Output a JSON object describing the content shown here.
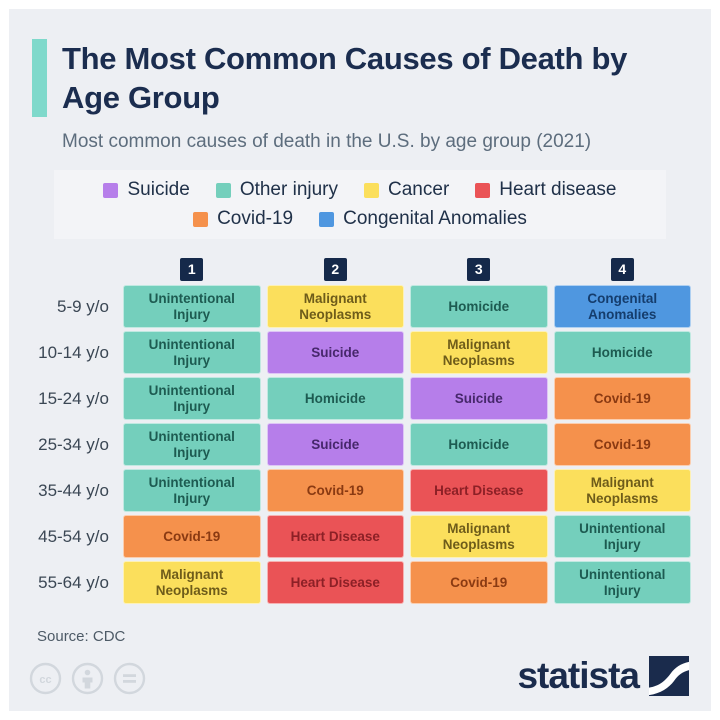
{
  "header": {
    "title": "The Most Common Causes of Death by Age Group",
    "subtitle": "Most common causes of death in the U.S. by age group (2021)"
  },
  "legend": {
    "items": [
      "suicide",
      "other_injury",
      "cancer",
      "heart_disease",
      "covid19",
      "congenital_anomalies"
    ]
  },
  "chart_data": {
    "type": "table",
    "title": "The Most Common Causes of Death by Age Group",
    "subtitle": "Most common causes of death in the U.S. by age group (2021)",
    "source": "Source: CDC",
    "columns": [
      "1",
      "2",
      "3",
      "4"
    ],
    "categories": {
      "suicide": {
        "label": "Suicide",
        "bg": "#b67eea",
        "text_color": "#46276b"
      },
      "other_injury": {
        "label": "Other injury",
        "bg": "#74cfbc",
        "text_color": "#1d5b51"
      },
      "cancer": {
        "label": "Cancer",
        "bg": "#fbdf5c",
        "text_color": "#6e5c1a"
      },
      "heart_disease": {
        "label": "Heart disease",
        "bg": "#ea5356",
        "text_color": "#8c2026"
      },
      "covid19": {
        "label": "Covid-19",
        "bg": "#f5914c",
        "text_color": "#8a3a12"
      },
      "congenital_anomalies": {
        "label": "Congenital Anomalies",
        "bg": "#4f97e0",
        "text_color": "#153d6d"
      }
    },
    "rows": [
      {
        "label": "5-9 y/o",
        "cells": [
          {
            "text": "Unintentional Injury",
            "category": "other_injury"
          },
          {
            "text": "Malignant Neoplasms",
            "category": "cancer"
          },
          {
            "text": "Homicide",
            "category": "other_injury"
          },
          {
            "text": "Congenital Anomalies",
            "category": "congenital_anomalies"
          }
        ]
      },
      {
        "label": "10-14 y/o",
        "cells": [
          {
            "text": "Unintentional Injury",
            "category": "other_injury"
          },
          {
            "text": "Suicide",
            "category": "suicide"
          },
          {
            "text": "Malignant Neoplasms",
            "category": "cancer"
          },
          {
            "text": "Homicide",
            "category": "other_injury"
          }
        ]
      },
      {
        "label": "15-24 y/o",
        "cells": [
          {
            "text": "Unintentional Injury",
            "category": "other_injury"
          },
          {
            "text": "Homicide",
            "category": "other_injury"
          },
          {
            "text": "Suicide",
            "category": "suicide"
          },
          {
            "text": "Covid-19",
            "category": "covid19"
          }
        ]
      },
      {
        "label": "25-34 y/o",
        "cells": [
          {
            "text": "Unintentional Injury",
            "category": "other_injury"
          },
          {
            "text": "Suicide",
            "category": "suicide"
          },
          {
            "text": "Homicide",
            "category": "other_injury"
          },
          {
            "text": "Covid-19",
            "category": "covid19"
          }
        ]
      },
      {
        "label": "35-44 y/o",
        "cells": [
          {
            "text": "Unintentional Injury",
            "category": "other_injury"
          },
          {
            "text": "Covid-19",
            "category": "covid19"
          },
          {
            "text": "Heart Disease",
            "category": "heart_disease"
          },
          {
            "text": "Malignant Neoplasms",
            "category": "cancer"
          }
        ]
      },
      {
        "label": "45-54 y/o",
        "cells": [
          {
            "text": "Covid-19",
            "category": "covid19"
          },
          {
            "text": "Heart Disease",
            "category": "heart_disease"
          },
          {
            "text": "Malignant Neoplasms",
            "category": "cancer"
          },
          {
            "text": "Unintentional Injury",
            "category": "other_injury"
          }
        ]
      },
      {
        "label": "55-64 y/o",
        "cells": [
          {
            "text": "Malignant Neoplasms",
            "category": "cancer"
          },
          {
            "text": "Heart Disease",
            "category": "heart_disease"
          },
          {
            "text": "Covid-19",
            "category": "covid19"
          },
          {
            "text": "Unintentional Injury",
            "category": "other_injury"
          }
        ]
      }
    ]
  },
  "footer": {
    "source": "Source: CDC",
    "brand": "statista",
    "license_icons": [
      "cc-icon",
      "attribution-icon",
      "no-derivatives-icon"
    ],
    "colors": {
      "brand_navy": "#1a2b4c",
      "license_gray": "#d2d7dd"
    }
  },
  "colors": {
    "page_background": "#edeff3",
    "outer_frame": "#ffffff",
    "accent_teal": "#7fd9cb",
    "title_navy": "#1b2d4f",
    "subtitle_gray": "#5d6d7d",
    "column_header_bg": "#15294a"
  }
}
